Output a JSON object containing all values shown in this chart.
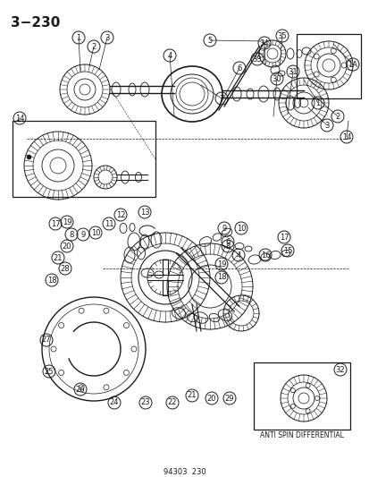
{
  "title": "3-230",
  "bg_color": "#ffffff",
  "line_color": "#1a1a1a",
  "footnote": "94303  230",
  "anti_spin_label": "ANTI SPIN DIFFERENTIAL",
  "fig_w": 4.14,
  "fig_h": 5.33,
  "dpi": 100
}
